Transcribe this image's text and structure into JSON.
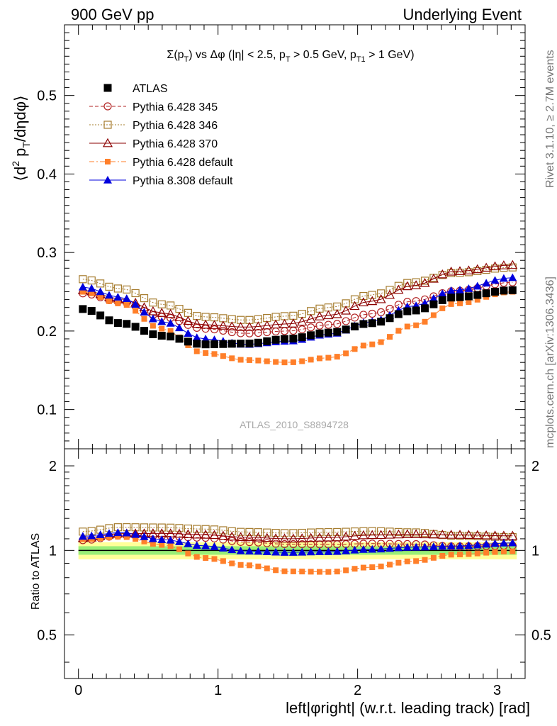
{
  "header": {
    "left": "900 GeV pp",
    "right": "Underlying Event"
  },
  "side": {
    "rivet": "Rivet 3.1.10, ≥ 2.7M events",
    "mcplots": "mcplots.cern.ch [arXiv:1306.3436]"
  },
  "chart_data": {
    "type": "scatter",
    "title": "Σ(pT) vs Δφ (|η| < 2.5, pT > 0.5 GeV, pT1 > 1 GeV)",
    "ylabel": "⟨d² pT/dηdφ⟩",
    "ratio_ylabel": "Ratio to ATLAS",
    "xlabel": "left|φright| (w.r.t. leading track) [rad]",
    "watermark": "ATLAS_2010_S8894728",
    "xlim": [
      -0.1,
      3.2
    ],
    "ylim": [
      0.05,
      0.59
    ],
    "ratio_ylim": [
      0.35,
      2.3
    ],
    "x_ticks": [
      "0",
      "1",
      "2",
      "3"
    ],
    "y_ticks": [
      "0.1",
      "0.2",
      "0.3",
      "0.4",
      "0.5"
    ],
    "ratio_ticks": [
      "0.5",
      "1",
      "2"
    ],
    "legend_position": "top-left",
    "grid": false,
    "n_points": 50,
    "x_range": [
      0.0314,
      3.11
    ],
    "series": [
      {
        "name": "ATLAS",
        "color": "#000000",
        "marker": "square-filled",
        "knots": [
          [
            0.03,
            0.228
          ],
          [
            0.3,
            0.21
          ],
          [
            0.6,
            0.194
          ],
          [
            0.9,
            0.183
          ],
          [
            1.2,
            0.184
          ],
          [
            1.5,
            0.19
          ],
          [
            1.8,
            0.198
          ],
          [
            2.1,
            0.21
          ],
          [
            2.4,
            0.226
          ],
          [
            2.7,
            0.243
          ],
          [
            3.11,
            0.252
          ]
        ]
      },
      {
        "name": "Pythia 6.428 345",
        "color": "#b22222",
        "marker": "circle-open",
        "line": "dashed",
        "knots": [
          [
            0.03,
            0.248
          ],
          [
            0.3,
            0.237
          ],
          [
            0.6,
            0.218
          ],
          [
            0.9,
            0.203
          ],
          [
            1.2,
            0.197
          ],
          [
            1.5,
            0.2
          ],
          [
            1.8,
            0.208
          ],
          [
            2.1,
            0.222
          ],
          [
            2.4,
            0.238
          ],
          [
            2.7,
            0.251
          ],
          [
            3.11,
            0.262
          ]
        ]
      },
      {
        "name": "Pythia 6.428 346",
        "color": "#a67c2e",
        "marker": "square-open",
        "line": "dotted",
        "knots": [
          [
            0.03,
            0.266
          ],
          [
            0.3,
            0.254
          ],
          [
            0.6,
            0.234
          ],
          [
            0.9,
            0.218
          ],
          [
            1.2,
            0.214
          ],
          [
            1.5,
            0.219
          ],
          [
            1.8,
            0.23
          ],
          [
            2.1,
            0.246
          ],
          [
            2.4,
            0.262
          ],
          [
            2.7,
            0.274
          ],
          [
            3.11,
            0.281
          ]
        ]
      },
      {
        "name": "Pythia 6.428 370",
        "color": "#8b0000",
        "marker": "triangle-open",
        "line": "solid",
        "knots": [
          [
            0.03,
            0.252
          ],
          [
            0.3,
            0.241
          ],
          [
            0.6,
            0.223
          ],
          [
            0.9,
            0.208
          ],
          [
            1.2,
            0.205
          ],
          [
            1.5,
            0.209
          ],
          [
            1.8,
            0.22
          ],
          [
            2.1,
            0.238
          ],
          [
            2.4,
            0.258
          ],
          [
            2.7,
            0.276
          ],
          [
            3.11,
            0.284
          ]
        ]
      },
      {
        "name": "Pythia 6.428 default",
        "color": "#ff7f2a",
        "marker": "square-filled-small",
        "line": "dashdot",
        "knots": [
          [
            0.03,
            0.25
          ],
          [
            0.3,
            0.235
          ],
          [
            0.6,
            0.203
          ],
          [
            0.9,
            0.172
          ],
          [
            1.2,
            0.163
          ],
          [
            1.5,
            0.16
          ],
          [
            1.8,
            0.166
          ],
          [
            2.1,
            0.183
          ],
          [
            2.4,
            0.207
          ],
          [
            2.7,
            0.235
          ],
          [
            3.11,
            0.25
          ]
        ]
      },
      {
        "name": "Pythia 8.308 default",
        "color": "#0000dd",
        "marker": "triangle-filled",
        "line": "solid",
        "knots": [
          [
            0.03,
            0.256
          ],
          [
            0.3,
            0.243
          ],
          [
            0.6,
            0.212
          ],
          [
            0.9,
            0.19
          ],
          [
            1.2,
            0.183
          ],
          [
            1.5,
            0.187
          ],
          [
            1.8,
            0.196
          ],
          [
            2.1,
            0.212
          ],
          [
            2.4,
            0.232
          ],
          [
            2.7,
            0.252
          ],
          [
            3.11,
            0.268
          ]
        ]
      }
    ]
  }
}
